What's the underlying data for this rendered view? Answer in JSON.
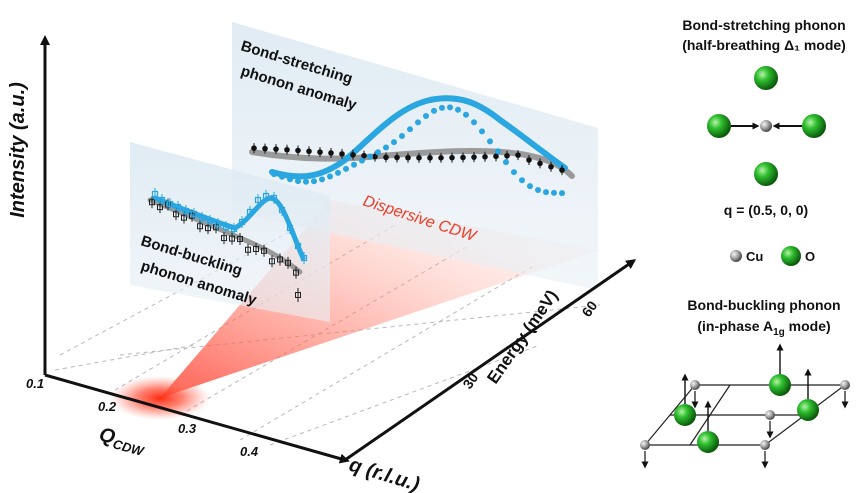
{
  "main": {
    "y_axis_label": "Intensity (a.u.)",
    "q_axis_label": "q (r.l.u.)",
    "q_ticks": [
      "0.1",
      "0.2",
      "0.3",
      "0.4"
    ],
    "qcdw_label": "Q",
    "qcdw_sub": "CDW",
    "energy_axis_label": "Energy (meV)",
    "energy_ticks": [
      "30",
      "60"
    ],
    "cdw_label": "Dispersive CDW",
    "upper_panel_line1": "Bond-stretching",
    "upper_panel_line2": "phonon anomaly",
    "lower_panel_line1": "Bond-buckling",
    "lower_panel_line2": "phonon anomaly"
  },
  "legend": {
    "stretch_title1": "Bond-stretching phonon",
    "stretch_title2": "(half-breathing Δ₁ mode)",
    "q_vector": "q = (0.5, 0, 0)",
    "cu_label": "Cu",
    "o_label": "O",
    "buckle_title1": "Bond-buckling phonon",
    "buckle_title2_a": "(in-phase A",
    "buckle_title2_sub": "1g",
    "buckle_title2_b": " mode)"
  },
  "colors": {
    "cyan": "#2aa6e0",
    "black_data": "#111111",
    "gray_fit": "#9a9a9a",
    "cdw_red": "#f03b24",
    "oxygen_green": "#19a319",
    "copper_gray": "#9a9a9a",
    "panel_fill": "#dfeaf3"
  },
  "icons": [
    "copper-atom-icon",
    "oxygen-atom-icon",
    "displacement-arrow-icon"
  ]
}
